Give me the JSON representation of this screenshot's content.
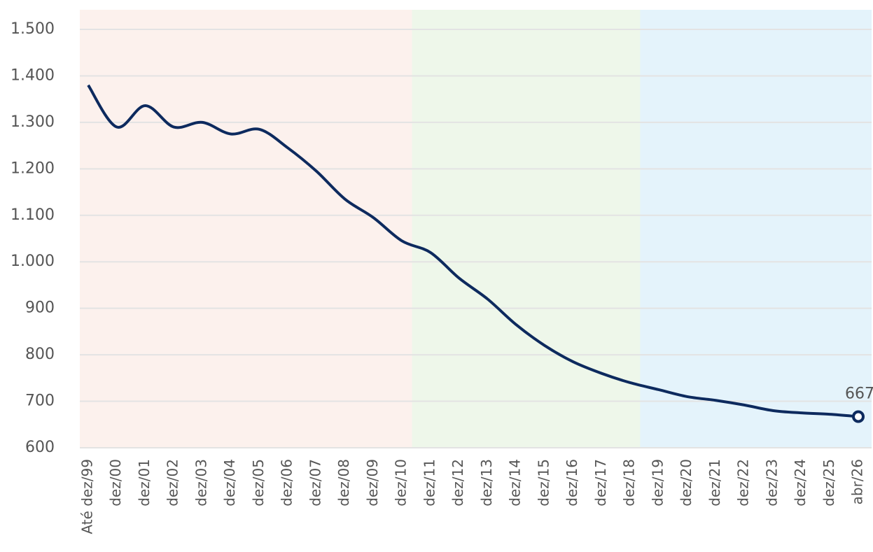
{
  "chart_data": {
    "type": "line",
    "categories": [
      "Até dez/99",
      "dez/00",
      "dez/01",
      "dez/02",
      "dez/03",
      "dez/04",
      "dez/05",
      "dez/06",
      "dez/07",
      "dez/08",
      "dez/09",
      "dez/10",
      "dez/11",
      "dez/12",
      "dez/13",
      "dez/14",
      "dez/15",
      "dez/16",
      "dez/17",
      "dez/18",
      "dez/19",
      "dez/20",
      "dez/21",
      "dez/22",
      "dez/23",
      "dez/24",
      "dez/25",
      "abr/26"
    ],
    "values": [
      1380,
      1290,
      1336,
      1290,
      1300,
      1275,
      1285,
      1245,
      1195,
      1135,
      1095,
      1045,
      1020,
      965,
      920,
      865,
      820,
      785,
      760,
      740,
      725,
      710,
      702,
      692,
      680,
      675,
      672,
      667
    ],
    "color": "#0d2a5e",
    "ylim": [
      600,
      1500
    ],
    "yticks": [
      600,
      700,
      800,
      900,
      {
        "value": 1000,
        "label": "1.000"
      },
      {
        "value": 1100,
        "label": "1.100"
      },
      {
        "value": 1200,
        "label": "1.200"
      },
      {
        "value": 1300,
        "label": "1.300"
      },
      {
        "value": 1400,
        "label": "1.400"
      },
      {
        "value": 1500,
        "label": "1.500"
      }
    ],
    "grid": true,
    "shaded_periods": [
      {
        "first": 0,
        "last": 11,
        "color": "#fcf1ed"
      },
      {
        "first": 12,
        "last": 19,
        "color": "#eef7ea"
      },
      {
        "first": 20,
        "last": 27,
        "color": "#e4f3fb"
      }
    ]
  }
}
